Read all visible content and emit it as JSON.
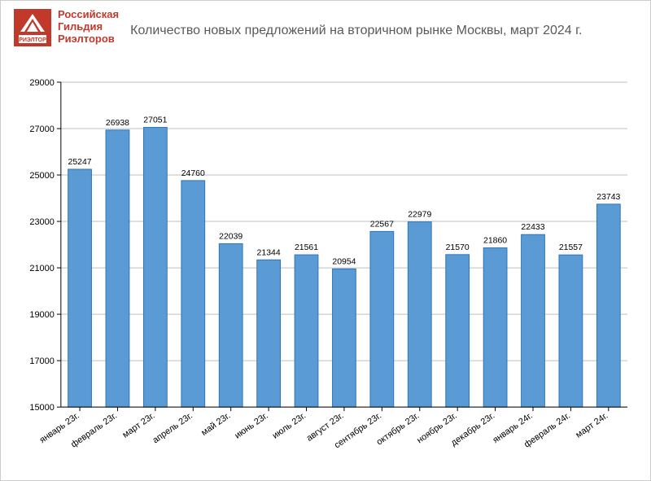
{
  "org": {
    "line1": "Российская",
    "line2": "Гильдия",
    "line3": "Риэлторов",
    "color": "#c0392b",
    "logo_caption": "РИЭЛТОР"
  },
  "title": {
    "text": "Количество новых предложений на вторичном рынке Москвы, март 2024 г.",
    "color": "#595959",
    "fontsize": 16
  },
  "chart": {
    "type": "bar",
    "categories": [
      "январь 23г.",
      "февраль 23г.",
      "март 23г.",
      "апрель 23г.",
      "май 23г.",
      "июнь 23г.",
      "июль 23г.",
      "август 23г.",
      "сентябрь 23г.",
      "октябрь 23г.",
      "ноябрь 23г.",
      "декабрь 23г.",
      "январь 24г.",
      "февраль 24г.",
      "март 24г."
    ],
    "values": [
      25247,
      26938,
      27051,
      24760,
      22039,
      21344,
      21561,
      20954,
      22567,
      22979,
      21570,
      21860,
      22433,
      21557,
      23743
    ],
    "bar_fill": "#5b9bd5",
    "bar_stroke": "#2e75b6",
    "ylim": [
      15000,
      29000
    ],
    "ytick_step": 2000,
    "yticks": [
      15000,
      17000,
      19000,
      21000,
      23000,
      25000,
      27000,
      29000
    ],
    "grid_color": "#bfbfbf",
    "axis_color": "#000000",
    "background_color": "#ffffff",
    "bar_width_ratio": 0.62,
    "label_fontsize": 11,
    "value_label_fontsize": 10.5,
    "xlabel_rotation": -35
  }
}
